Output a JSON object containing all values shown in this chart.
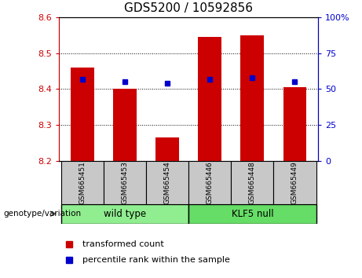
{
  "title": "GDS5200 / 10592856",
  "samples": [
    "GSM665451",
    "GSM665453",
    "GSM665454",
    "GSM665446",
    "GSM665448",
    "GSM665449"
  ],
  "bar_values": [
    8.46,
    8.4,
    8.265,
    8.545,
    8.55,
    8.405
  ],
  "bar_bottom": 8.2,
  "percentile_pct": [
    57,
    55,
    54,
    57,
    58,
    55
  ],
  "ylim_left": [
    8.2,
    8.6
  ],
  "ylim_right": [
    0,
    100
  ],
  "yticks_left": [
    8.2,
    8.3,
    8.4,
    8.5,
    8.6
  ],
  "yticks_right": [
    0,
    25,
    50,
    75,
    100
  ],
  "bar_color": "#CC0000",
  "percentile_color": "#0000CC",
  "wild_type_color": "#90EE90",
  "klf5_color": "#66DD66",
  "label_bg_color": "#C8C8C8",
  "genotype_label": "genotype/variation",
  "legend_items": [
    "transformed count",
    "percentile rank within the sample"
  ],
  "tick_color_left": "#CC0000",
  "tick_color_right": "#0000CC",
  "title_fontsize": 11,
  "legend_fontsize": 8,
  "sample_fontsize": 6.5
}
